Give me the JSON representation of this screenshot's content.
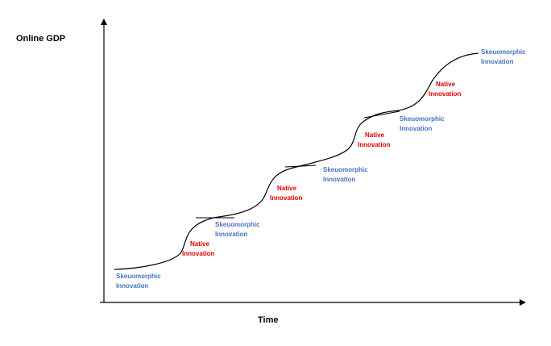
{
  "y_axis_label": "Online GDP",
  "x_axis_label": "Time",
  "colors": {
    "skeuomorphic": "#4472c4",
    "native": "#e00000",
    "line": "#000000"
  },
  "stages": [
    {
      "kind": "skeuomorphic",
      "line1": "Skeuomorphic",
      "line2": "Innovation"
    },
    {
      "kind": "native",
      "line1": "Native",
      "line2": "Innovation"
    },
    {
      "kind": "skeuomorphic",
      "line1": "Skeuomorphic",
      "line2": "Innovation"
    },
    {
      "kind": "native",
      "line1": "Native",
      "line2": "Innovation"
    },
    {
      "kind": "skeuomorphic",
      "line1": "Skeuomorphic",
      "line2": "Innovation"
    },
    {
      "kind": "native",
      "line1": "Native",
      "line2": "Innovation"
    },
    {
      "kind": "skeuomorphic",
      "line1": "Skeuomorphic",
      "line2": "Innovation"
    },
    {
      "kind": "native",
      "line1": "Native",
      "line2": "Innovation"
    },
    {
      "kind": "skeuomorphic",
      "line1": "Skeuomorphic",
      "line2": "Innovation"
    }
  ]
}
